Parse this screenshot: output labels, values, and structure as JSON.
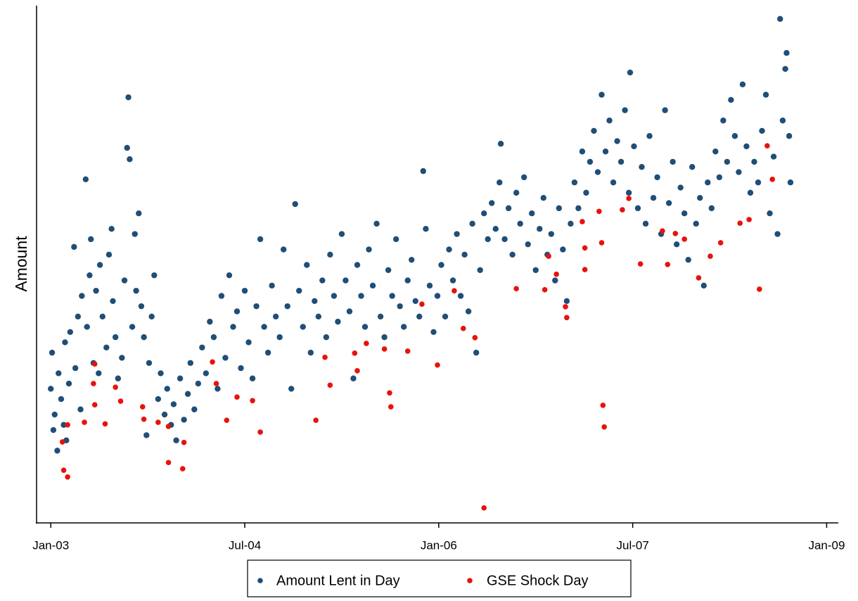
{
  "chart_data": {
    "type": "scatter",
    "y_label": "Amount",
    "xlim": [
      2002.89,
      2009.09
    ],
    "xticks": [
      {
        "value": 2003,
        "label": "Jan-03"
      },
      {
        "value": 2004.5,
        "label": "Jul-04"
      },
      {
        "value": 2006,
        "label": "Jan-06"
      },
      {
        "value": 2007.5,
        "label": "Jul-07"
      },
      {
        "value": 2009,
        "label": "Jan-09"
      }
    ],
    "ylim": [
      0,
      100
    ],
    "legend": "bottom",
    "series": [
      {
        "name": "Amount Lent in Day",
        "color": "#1f4e78",
        "x": [
          2003.0,
          2003.01,
          2003.02,
          2003.03,
          2003.05,
          2003.06,
          2003.08,
          2003.1,
          2003.11,
          2003.12,
          2003.14,
          2003.15,
          2003.18,
          2003.19,
          2003.21,
          2003.23,
          2003.24,
          2003.27,
          2003.28,
          2003.3,
          2003.31,
          2003.33,
          2003.35,
          2003.37,
          2003.38,
          2003.4,
          2003.43,
          2003.45,
          2003.47,
          2003.48,
          2003.5,
          2003.52,
          2003.55,
          2003.57,
          2003.59,
          2003.6,
          2003.61,
          2003.63,
          2003.65,
          2003.66,
          2003.68,
          2003.7,
          2003.72,
          2003.74,
          2003.76,
          2003.78,
          2003.8,
          2003.83,
          2003.85,
          2003.88,
          2003.9,
          2003.93,
          2003.95,
          2003.97,
          2004.0,
          2004.03,
          2004.06,
          2004.08,
          2004.11,
          2004.14,
          2004.17,
          2004.2,
          2004.23,
          2004.26,
          2004.29,
          2004.32,
          2004.35,
          2004.38,
          2004.41,
          2004.44,
          2004.47,
          2004.5,
          2004.53,
          2004.56,
          2004.59,
          2004.62,
          2004.65,
          2004.68,
          2004.71,
          2004.74,
          2004.77,
          2004.8,
          2004.83,
          2004.86,
          2004.89,
          2004.92,
          2004.95,
          2004.98,
          2005.01,
          2005.04,
          2005.07,
          2005.1,
          2005.13,
          2005.16,
          2005.19,
          2005.22,
          2005.25,
          2005.28,
          2005.31,
          2005.34,
          2005.37,
          2005.4,
          2005.43,
          2005.46,
          2005.49,
          2005.52,
          2005.55,
          2005.58,
          2005.61,
          2005.64,
          2005.67,
          2005.7,
          2005.73,
          2005.76,
          2005.79,
          2005.82,
          2005.85,
          2005.88,
          2005.9,
          2005.93,
          2005.96,
          2005.99,
          2006.02,
          2006.05,
          2006.08,
          2006.11,
          2006.14,
          2006.17,
          2006.2,
          2006.23,
          2006.26,
          2006.29,
          2006.32,
          2006.35,
          2006.38,
          2006.41,
          2006.44,
          2006.47,
          2006.48,
          2006.51,
          2006.54,
          2006.57,
          2006.6,
          2006.63,
          2006.66,
          2006.69,
          2006.72,
          2006.75,
          2006.78,
          2006.81,
          2006.84,
          2006.87,
          2006.9,
          2006.93,
          2006.96,
          2006.99,
          2007.02,
          2007.05,
          2007.08,
          2007.11,
          2007.14,
          2007.17,
          2007.2,
          2007.23,
          2007.26,
          2007.29,
          2007.32,
          2007.35,
          2007.38,
          2007.41,
          2007.44,
          2007.47,
          2007.48,
          2007.51,
          2007.54,
          2007.57,
          2007.6,
          2007.63,
          2007.66,
          2007.69,
          2007.72,
          2007.75,
          2007.78,
          2007.81,
          2007.84,
          2007.87,
          2007.9,
          2007.93,
          2007.96,
          2007.99,
          2008.02,
          2008.05,
          2008.08,
          2008.11,
          2008.14,
          2008.17,
          2008.2,
          2008.23,
          2008.26,
          2008.29,
          2008.32,
          2008.35,
          2008.38,
          2008.41,
          2008.44,
          2008.47,
          2008.5,
          2008.53,
          2008.56,
          2008.59,
          2008.62,
          2008.64,
          2008.66,
          2008.68,
          2008.69,
          2008.71,
          2008.72
        ],
        "values": [
          26,
          33,
          18,
          21,
          14,
          29,
          24,
          19,
          35,
          16,
          27,
          37,
          53.5,
          30,
          40,
          22,
          44,
          66.6,
          38,
          48,
          55,
          31,
          45,
          29,
          50,
          40,
          34,
          52,
          57,
          43,
          36,
          28,
          32,
          47,
          72.7,
          82.5,
          70.5,
          38,
          56,
          45,
          60,
          42,
          36,
          17,
          31,
          40,
          48,
          24,
          29,
          21,
          26,
          19,
          23,
          16,
          28,
          20,
          25,
          31,
          22,
          27,
          34,
          29,
          39,
          36,
          26,
          44,
          32,
          48,
          38,
          41,
          30,
          45,
          35,
          28,
          42,
          55,
          38,
          33,
          46,
          40,
          36,
          53,
          42,
          26,
          61.8,
          45,
          38,
          50,
          33,
          43,
          40,
          47,
          36,
          52,
          44,
          39,
          56,
          47,
          41,
          28,
          50,
          44,
          38,
          53,
          46,
          58,
          40,
          36,
          49,
          44,
          55,
          42,
          38,
          47,
          51,
          43,
          40,
          68.2,
          57,
          46,
          37,
          44,
          50,
          40,
          53,
          47,
          56,
          44,
          52,
          41,
          58,
          33,
          49,
          60,
          55,
          62,
          57,
          66,
          73.5,
          55,
          61,
          52,
          64,
          58,
          67,
          54,
          60,
          49,
          57,
          63,
          52,
          56,
          47,
          61,
          53,
          43,
          58,
          66,
          61,
          72,
          64,
          70,
          76,
          68,
          83,
          72,
          78,
          66,
          74,
          70,
          80,
          64,
          87.3,
          73,
          61,
          69,
          58,
          75,
          63,
          67,
          56,
          80,
          62,
          70,
          54,
          65,
          60,
          51,
          69,
          58,
          63,
          46,
          66,
          61,
          72,
          67,
          78,
          70,
          82,
          75,
          68,
          85,
          73,
          64,
          70,
          66,
          76,
          83,
          60,
          71,
          56,
          97.7,
          78,
          88,
          91.1,
          75,
          66
        ]
      },
      {
        "name": "GSE Shock Day",
        "color": "#e8120c",
        "x": [
          2003.09,
          2003.1,
          2003.13,
          2003.13,
          2003.26,
          2003.34,
          2003.33,
          2003.34,
          2003.42,
          2003.5,
          2003.54,
          2003.71,
          2003.72,
          2003.83,
          2003.91,
          2003.91,
          2004.02,
          2004.03,
          2004.25,
          2004.28,
          2004.36,
          2004.44,
          2004.56,
          2004.62,
          2005.05,
          2005.12,
          2005.16,
          2005.35,
          2005.37,
          2005.44,
          2005.58,
          2005.62,
          2005.63,
          2005.76,
          2005.87,
          2005.99,
          2006.12,
          2006.19,
          2006.28,
          2006.35,
          2006.6,
          2006.82,
          2006.85,
          2006.91,
          2006.98,
          2006.99,
          2007.11,
          2007.13,
          2007.13,
          2007.24,
          2007.26,
          2007.27,
          2007.28,
          2007.42,
          2007.47,
          2007.56,
          2007.73,
          2007.77,
          2007.83,
          2007.9,
          2008.01,
          2008.1,
          2008.18,
          2008.33,
          2008.4,
          2008.48,
          2008.54,
          2008.58
        ],
        "values": [
          15.7,
          10.2,
          8.9,
          19,
          19.5,
          30.8,
          27,
          22.9,
          19.2,
          26.3,
          23.6,
          22.5,
          20.1,
          19.5,
          18.7,
          11.7,
          10.5,
          15.6,
          31.2,
          27,
          19.9,
          24.4,
          23.7,
          17.6,
          19.9,
          32.1,
          26.7,
          32.9,
          29.5,
          34.8,
          33.7,
          25.2,
          22.5,
          33.3,
          42.4,
          30.6,
          45,
          37.7,
          35.9,
          2.9,
          45.4,
          45.2,
          51.7,
          48.2,
          41.9,
          39.8,
          58.4,
          53.3,
          49.1,
          60.4,
          54.3,
          22.8,
          18.6,
          60.7,
          62.9,
          50.2,
          56.6,
          50.1,
          56.1,
          55,
          47.5,
          51.7,
          54.3,
          58.1,
          58.8,
          45.3,
          73.1,
          66.6
        ]
      }
    ]
  }
}
